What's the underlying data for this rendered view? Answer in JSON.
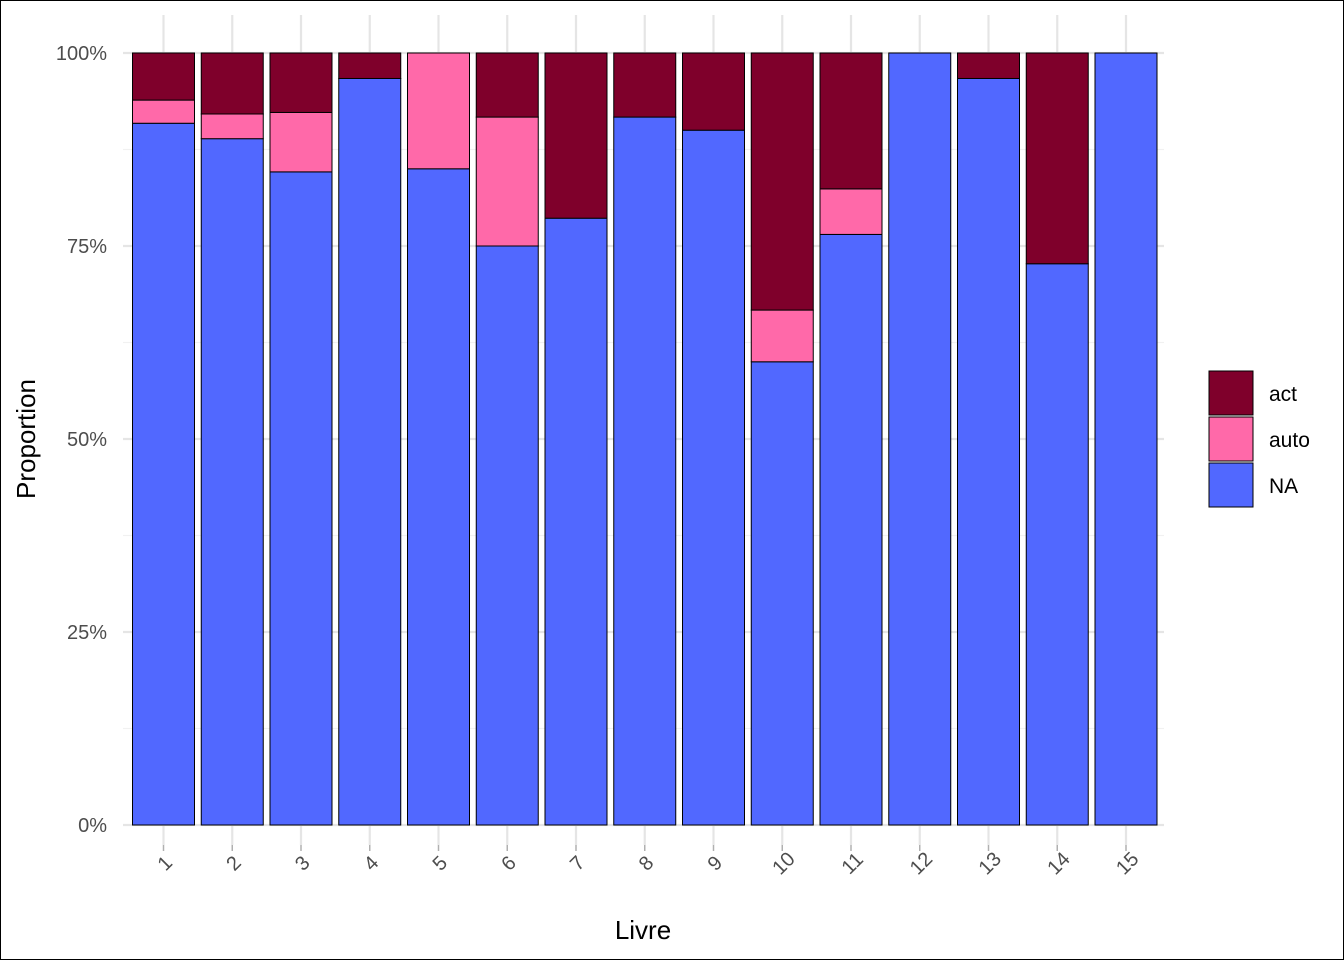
{
  "chart_data": {
    "type": "bar",
    "stacking": "percent",
    "xlabel": "Livre",
    "ylabel": "Proportion",
    "ylim": [
      0,
      1
    ],
    "y_ticks": [
      {
        "value": 0,
        "label": "0%"
      },
      {
        "value": 0.25,
        "label": "25%"
      },
      {
        "value": 0.5,
        "label": "50%"
      },
      {
        "value": 0.75,
        "label": "75%"
      },
      {
        "value": 1,
        "label": "100%"
      }
    ],
    "categories": [
      "1",
      "2",
      "3",
      "4",
      "5",
      "6",
      "7",
      "8",
      "9",
      "10",
      "11",
      "12",
      "13",
      "14",
      "15"
    ],
    "series": [
      {
        "name": "NA",
        "color": "#5168FF",
        "values": [
          0.909,
          0.889,
          0.846,
          0.967,
          0.85,
          0.75,
          0.786,
          0.917,
          0.9,
          0.6,
          0.765,
          1.0,
          0.967,
          0.727,
          1.0
        ]
      },
      {
        "name": "auto",
        "color": "#FF69A9",
        "values": [
          0.03,
          0.032,
          0.077,
          0,
          0.15,
          0.167,
          0,
          0,
          0,
          0.067,
          0.059,
          0,
          0,
          0,
          0
        ]
      },
      {
        "name": "act",
        "color": "#7F002B",
        "values": [
          0.061,
          0.079,
          0.077,
          0.033,
          0,
          0.083,
          0.214,
          0.083,
          0.1,
          0.333,
          0.176,
          0,
          0.033,
          0.273,
          0
        ]
      }
    ],
    "legend": {
      "placement": "right",
      "entries": [
        {
          "label": "act",
          "color": "#7F002B"
        },
        {
          "label": "auto",
          "color": "#FF69A9"
        },
        {
          "label": "NA",
          "color": "#5168FF"
        }
      ]
    },
    "grid": true,
    "x_tick_rotation": -45
  }
}
